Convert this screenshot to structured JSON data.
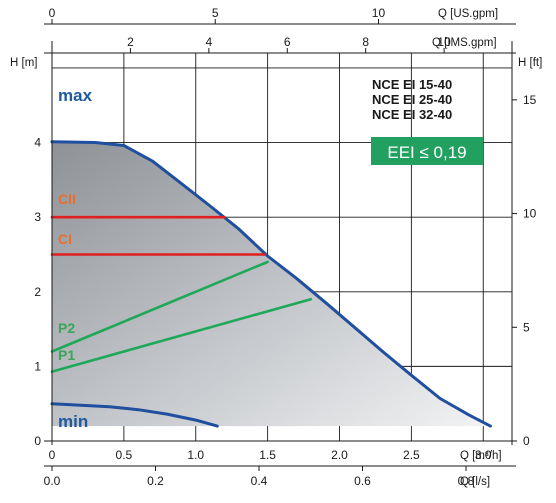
{
  "chart_data": {
    "type": "line",
    "title": "",
    "models": [
      "NCE EI 15-40",
      "NCE EI 25-40",
      "NCE EI 32-40"
    ],
    "badge": "EEI ≤ 0,19",
    "colors": {
      "max": "#1f4f9e",
      "min": "#1f4f9e",
      "constant_pressure": "#e02020",
      "proportional_pressure": "#1fa85a",
      "badge_bg": "#22a05f",
      "label_blue": "#1f5aa0",
      "label_orange": "#e8702a",
      "label_green": "#3aa55a"
    },
    "axes": {
      "x_bottom": {
        "label": "Q [m³/h]",
        "range": [
          0,
          3.2
        ],
        "ticks": [
          "0",
          "0.5",
          "1.0",
          "1.5",
          "2.0",
          "2.5",
          "3.0"
        ],
        "tick_values": [
          0,
          0.5,
          1.0,
          1.5,
          2.0,
          2.5,
          3.0
        ]
      },
      "x_bottom2": {
        "label": "Q [l/s]",
        "ticks": [
          "0.0",
          "0.2",
          "0.4",
          "0.6",
          "0.8"
        ],
        "tick_values": [
          0.0,
          0.2,
          0.4,
          0.6,
          0.8
        ]
      },
      "x_top": {
        "label": "Q [US.gpm]",
        "ticks": [
          "0",
          "5",
          "10"
        ],
        "tick_values": [
          0,
          5,
          10
        ]
      },
      "x_top2": {
        "label": "Q [IMS.gpm]",
        "ticks": [
          "2",
          "4",
          "6",
          "8",
          "10"
        ],
        "tick_values": [
          2,
          4,
          6,
          8,
          10
        ]
      },
      "y_left": {
        "label": "H [m]",
        "range": [
          0,
          5.2
        ],
        "ticks": [
          "0",
          "1",
          "2",
          "3",
          "4"
        ],
        "tick_values": [
          0,
          1,
          2,
          3,
          4
        ]
      },
      "y_right": {
        "label": "H [ft]",
        "ticks": [
          "0",
          "5",
          "10",
          "15"
        ],
        "tick_values": [
          0,
          5,
          10,
          15
        ]
      },
      "grid": true
    },
    "series": [
      {
        "name": "max",
        "color_key": "max",
        "points": [
          [
            0,
            4.01
          ],
          [
            0.3,
            4.0
          ],
          [
            0.5,
            3.96
          ],
          [
            0.7,
            3.75
          ],
          [
            0.9,
            3.45
          ],
          [
            1.1,
            3.15
          ],
          [
            1.3,
            2.84
          ],
          [
            1.5,
            2.48
          ],
          [
            1.7,
            2.18
          ],
          [
            1.9,
            1.86
          ],
          [
            2.1,
            1.53
          ],
          [
            2.3,
            1.2
          ],
          [
            2.5,
            0.88
          ],
          [
            2.7,
            0.57
          ],
          [
            2.9,
            0.35
          ],
          [
            3.05,
            0.2
          ]
        ]
      },
      {
        "name": "min",
        "color_key": "min",
        "points": [
          [
            0,
            0.5
          ],
          [
            0.2,
            0.48
          ],
          [
            0.4,
            0.46
          ],
          [
            0.6,
            0.42
          ],
          [
            0.8,
            0.36
          ],
          [
            1.0,
            0.28
          ],
          [
            1.15,
            0.2
          ]
        ]
      },
      {
        "name": "CII",
        "color_key": "constant_pressure",
        "points": [
          [
            0,
            3.0
          ],
          [
            1.2,
            3.0
          ]
        ]
      },
      {
        "name": "CI",
        "color_key": "constant_pressure",
        "points": [
          [
            0,
            2.5
          ],
          [
            1.48,
            2.5
          ]
        ]
      },
      {
        "name": "P2",
        "color_key": "proportional_pressure",
        "points": [
          [
            0,
            1.2
          ],
          [
            1.5,
            2.4
          ]
        ]
      },
      {
        "name": "P1",
        "color_key": "proportional_pressure",
        "points": [
          [
            0,
            0.93
          ],
          [
            1.8,
            1.9
          ]
        ]
      }
    ],
    "region": {
      "description_color": "gray",
      "upper": "max",
      "lower_h": 0.2
    }
  }
}
